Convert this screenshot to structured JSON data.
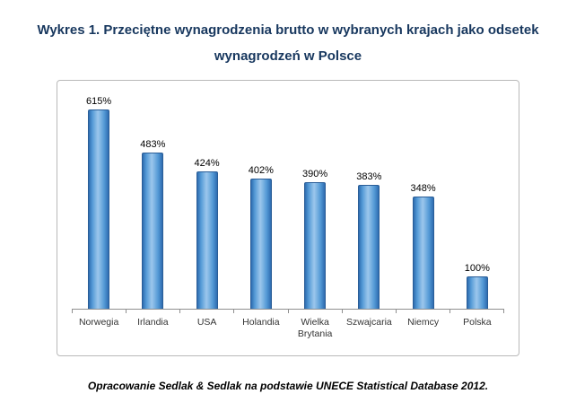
{
  "title": {
    "line1": "Wykres 1. Przeciętne wynagrodzenia brutto w wybranych krajach jako odsetek",
    "line2": "wynagrodzeń w Polsce"
  },
  "chart_data": {
    "type": "bar",
    "title": "Wykres 1. Przeciętne wynagrodzenia brutto w wybranych krajach jako odsetek wynagrodzeń w Polsce",
    "categories": [
      "Norwegia",
      "Irlandia",
      "USA",
      "Holandia",
      "Wielka Brytania",
      "Szwajcaria",
      "Niemcy",
      "Polska"
    ],
    "values": [
      615,
      483,
      424,
      402,
      390,
      383,
      348,
      100
    ],
    "data_labels": [
      "615%",
      "483%",
      "424%",
      "402%",
      "390%",
      "383%",
      "348%",
      "100%"
    ],
    "xlabel": "",
    "ylabel": "",
    "ylim": [
      0,
      660
    ],
    "grid": false,
    "legend": "none",
    "bar_color": "#549ad6",
    "bar_border_color": "#2a5d97",
    "title_color": "#17375e"
  },
  "footer": {
    "source_text": "Opracowanie Sedlak & Sedlak na podstawie UNECE Statistical  Database 2012."
  }
}
